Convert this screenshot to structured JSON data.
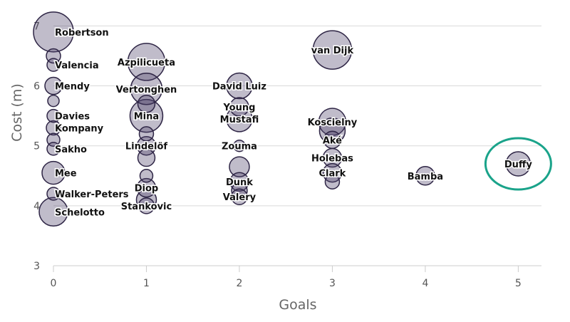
{
  "chart_data": {
    "type": "scatter",
    "xlabel": "Goals",
    "ylabel": "Cost (m)",
    "xlim": [
      0,
      5.25
    ],
    "ylim": [
      3,
      7.1
    ],
    "x_ticks": [
      0,
      1,
      2,
      3,
      4,
      5
    ],
    "y_ticks": [
      3,
      4,
      5,
      6,
      7
    ],
    "grid": "horizontal",
    "bubble_color": "#4a3f66",
    "highlight_color": "#1aa38a",
    "highlight_label": "Duffy",
    "points": [
      {
        "label": "Robertson",
        "x": 0,
        "y": 6.9,
        "size": 28
      },
      {
        "label": "",
        "x": 0,
        "y": 6.5,
        "size": 10
      },
      {
        "label": "Valencia",
        "x": 0,
        "y": 6.35,
        "size": 9
      },
      {
        "label": "Mendy",
        "x": 0,
        "y": 6.0,
        "size": 12
      },
      {
        "label": "",
        "x": 0,
        "y": 5.75,
        "size": 8
      },
      {
        "label": "Davies",
        "x": 0,
        "y": 5.5,
        "size": 9
      },
      {
        "label": "Kompany",
        "x": 0,
        "y": 5.3,
        "size": 10
      },
      {
        "label": "",
        "x": 0,
        "y": 5.1,
        "size": 9
      },
      {
        "label": "Sakho",
        "x": 0,
        "y": 4.95,
        "size": 9
      },
      {
        "label": "Mee",
        "x": 0,
        "y": 4.55,
        "size": 16
      },
      {
        "label": "Walker-Peters",
        "x": 0,
        "y": 4.2,
        "size": 9
      },
      {
        "label": "Schelotto",
        "x": 0,
        "y": 3.9,
        "size": 20
      },
      {
        "label": "Azpilicueta",
        "x": 1,
        "y": 6.4,
        "size": 26
      },
      {
        "label": "Vertonghen",
        "x": 1,
        "y": 5.95,
        "size": 22
      },
      {
        "label": "",
        "x": 1,
        "y": 5.7,
        "size": 12
      },
      {
        "label": "Mina",
        "x": 1,
        "y": 5.5,
        "size": 23
      },
      {
        "label": "",
        "x": 1,
        "y": 5.2,
        "size": 10
      },
      {
        "label": "Lindelöf",
        "x": 1,
        "y": 5.0,
        "size": 13
      },
      {
        "label": "",
        "x": 1,
        "y": 4.8,
        "size": 12
      },
      {
        "label": "",
        "x": 1,
        "y": 4.5,
        "size": 9
      },
      {
        "label": "Diop",
        "x": 1,
        "y": 4.3,
        "size": 13
      },
      {
        "label": "",
        "x": 1,
        "y": 4.1,
        "size": 14
      },
      {
        "label": "Stankovic",
        "x": 1,
        "y": 4.0,
        "size": 11
      },
      {
        "label": "David Luiz",
        "x": 2,
        "y": 6.0,
        "size": 18
      },
      {
        "label": "Young",
        "x": 2,
        "y": 5.65,
        "size": 13
      },
      {
        "label": "Mustafi",
        "x": 2,
        "y": 5.45,
        "size": 18
      },
      {
        "label": "Zouma",
        "x": 2,
        "y": 5.0,
        "size": 8
      },
      {
        "label": "",
        "x": 2,
        "y": 4.65,
        "size": 14
      },
      {
        "label": "Dunk",
        "x": 2,
        "y": 4.4,
        "size": 13
      },
      {
        "label": "",
        "x": 2,
        "y": 4.25,
        "size": 11
      },
      {
        "label": "Valery",
        "x": 2,
        "y": 4.15,
        "size": 11
      },
      {
        "label": "van Dijk",
        "x": 3,
        "y": 6.6,
        "size": 27
      },
      {
        "label": "Koscielny",
        "x": 3,
        "y": 5.4,
        "size": 19
      },
      {
        "label": "",
        "x": 3,
        "y": 5.25,
        "size": 18
      },
      {
        "label": "Aké",
        "x": 3,
        "y": 5.1,
        "size": 12
      },
      {
        "label": "Holebas",
        "x": 3,
        "y": 4.8,
        "size": 13
      },
      {
        "label": "Clark",
        "x": 3,
        "y": 4.55,
        "size": 13
      },
      {
        "label": "",
        "x": 3,
        "y": 4.4,
        "size": 10
      },
      {
        "label": "Bamba",
        "x": 4,
        "y": 4.5,
        "size": 13
      },
      {
        "label": "Duffy",
        "x": 5,
        "y": 4.7,
        "size": 17
      }
    ]
  }
}
